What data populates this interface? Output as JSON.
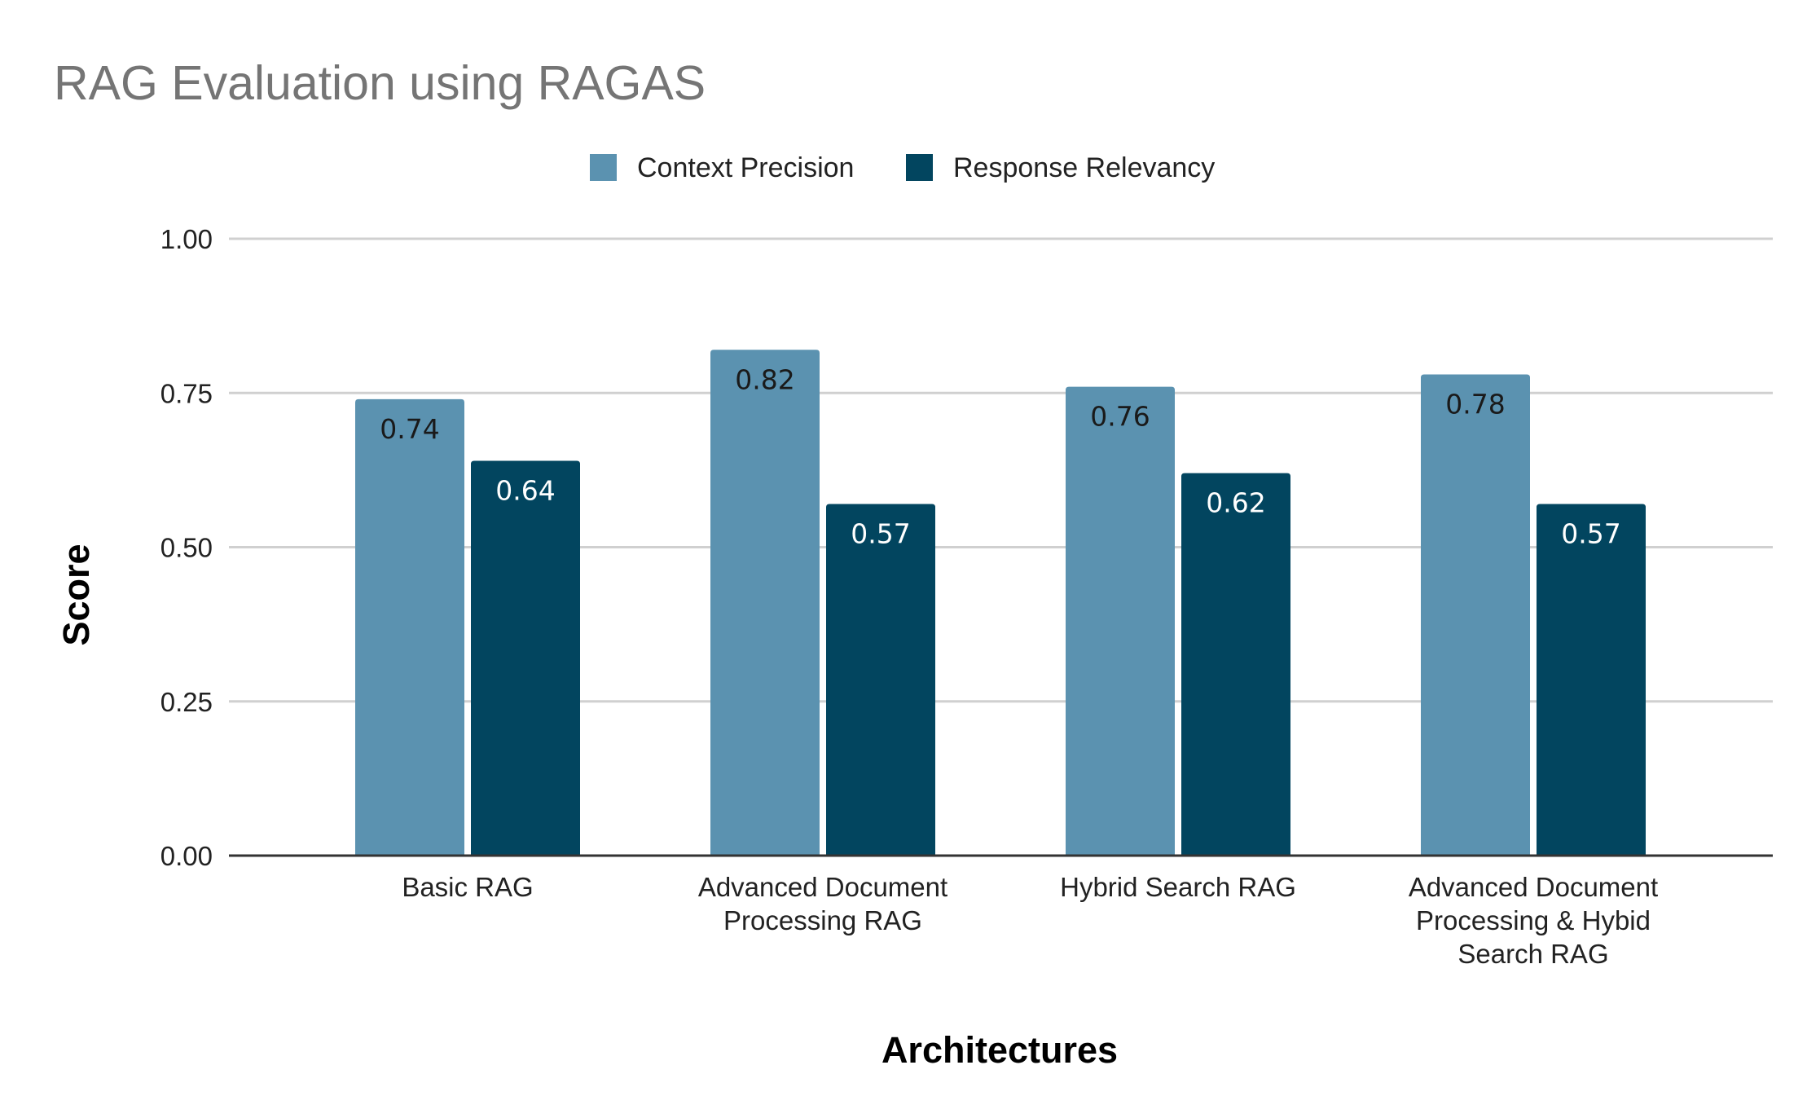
{
  "chart_data": {
    "type": "bar",
    "title": "RAG Evaluation using RAGAS",
    "xlabel": "Architectures",
    "ylabel": "Score",
    "ylim": [
      0,
      1
    ],
    "yticks": [
      "0.00",
      "0.25",
      "0.50",
      "0.75",
      "1.00"
    ],
    "grid": true,
    "legend_position": "top-center",
    "categories": [
      [
        "Basic RAG"
      ],
      [
        "Advanced Document",
        "Processing RAG"
      ],
      [
        "Hybrid Search RAG"
      ],
      [
        "Advanced Document",
        "Processing & Hybid",
        "Search RAG"
      ]
    ],
    "series": [
      {
        "name": "Context Precision",
        "color": "#5b92b0",
        "label_color": "#1a1a1a",
        "values": [
          0.74,
          0.82,
          0.76,
          0.78
        ],
        "labels": [
          "0.74",
          "0.82",
          "0.76",
          "0.78"
        ]
      },
      {
        "name": "Response Relevancy",
        "color": "#02455f",
        "label_color": "#ffffff",
        "values": [
          0.64,
          0.57,
          0.62,
          0.57
        ],
        "labels": [
          "0.64",
          "0.57",
          "0.62",
          "0.57"
        ]
      }
    ]
  }
}
